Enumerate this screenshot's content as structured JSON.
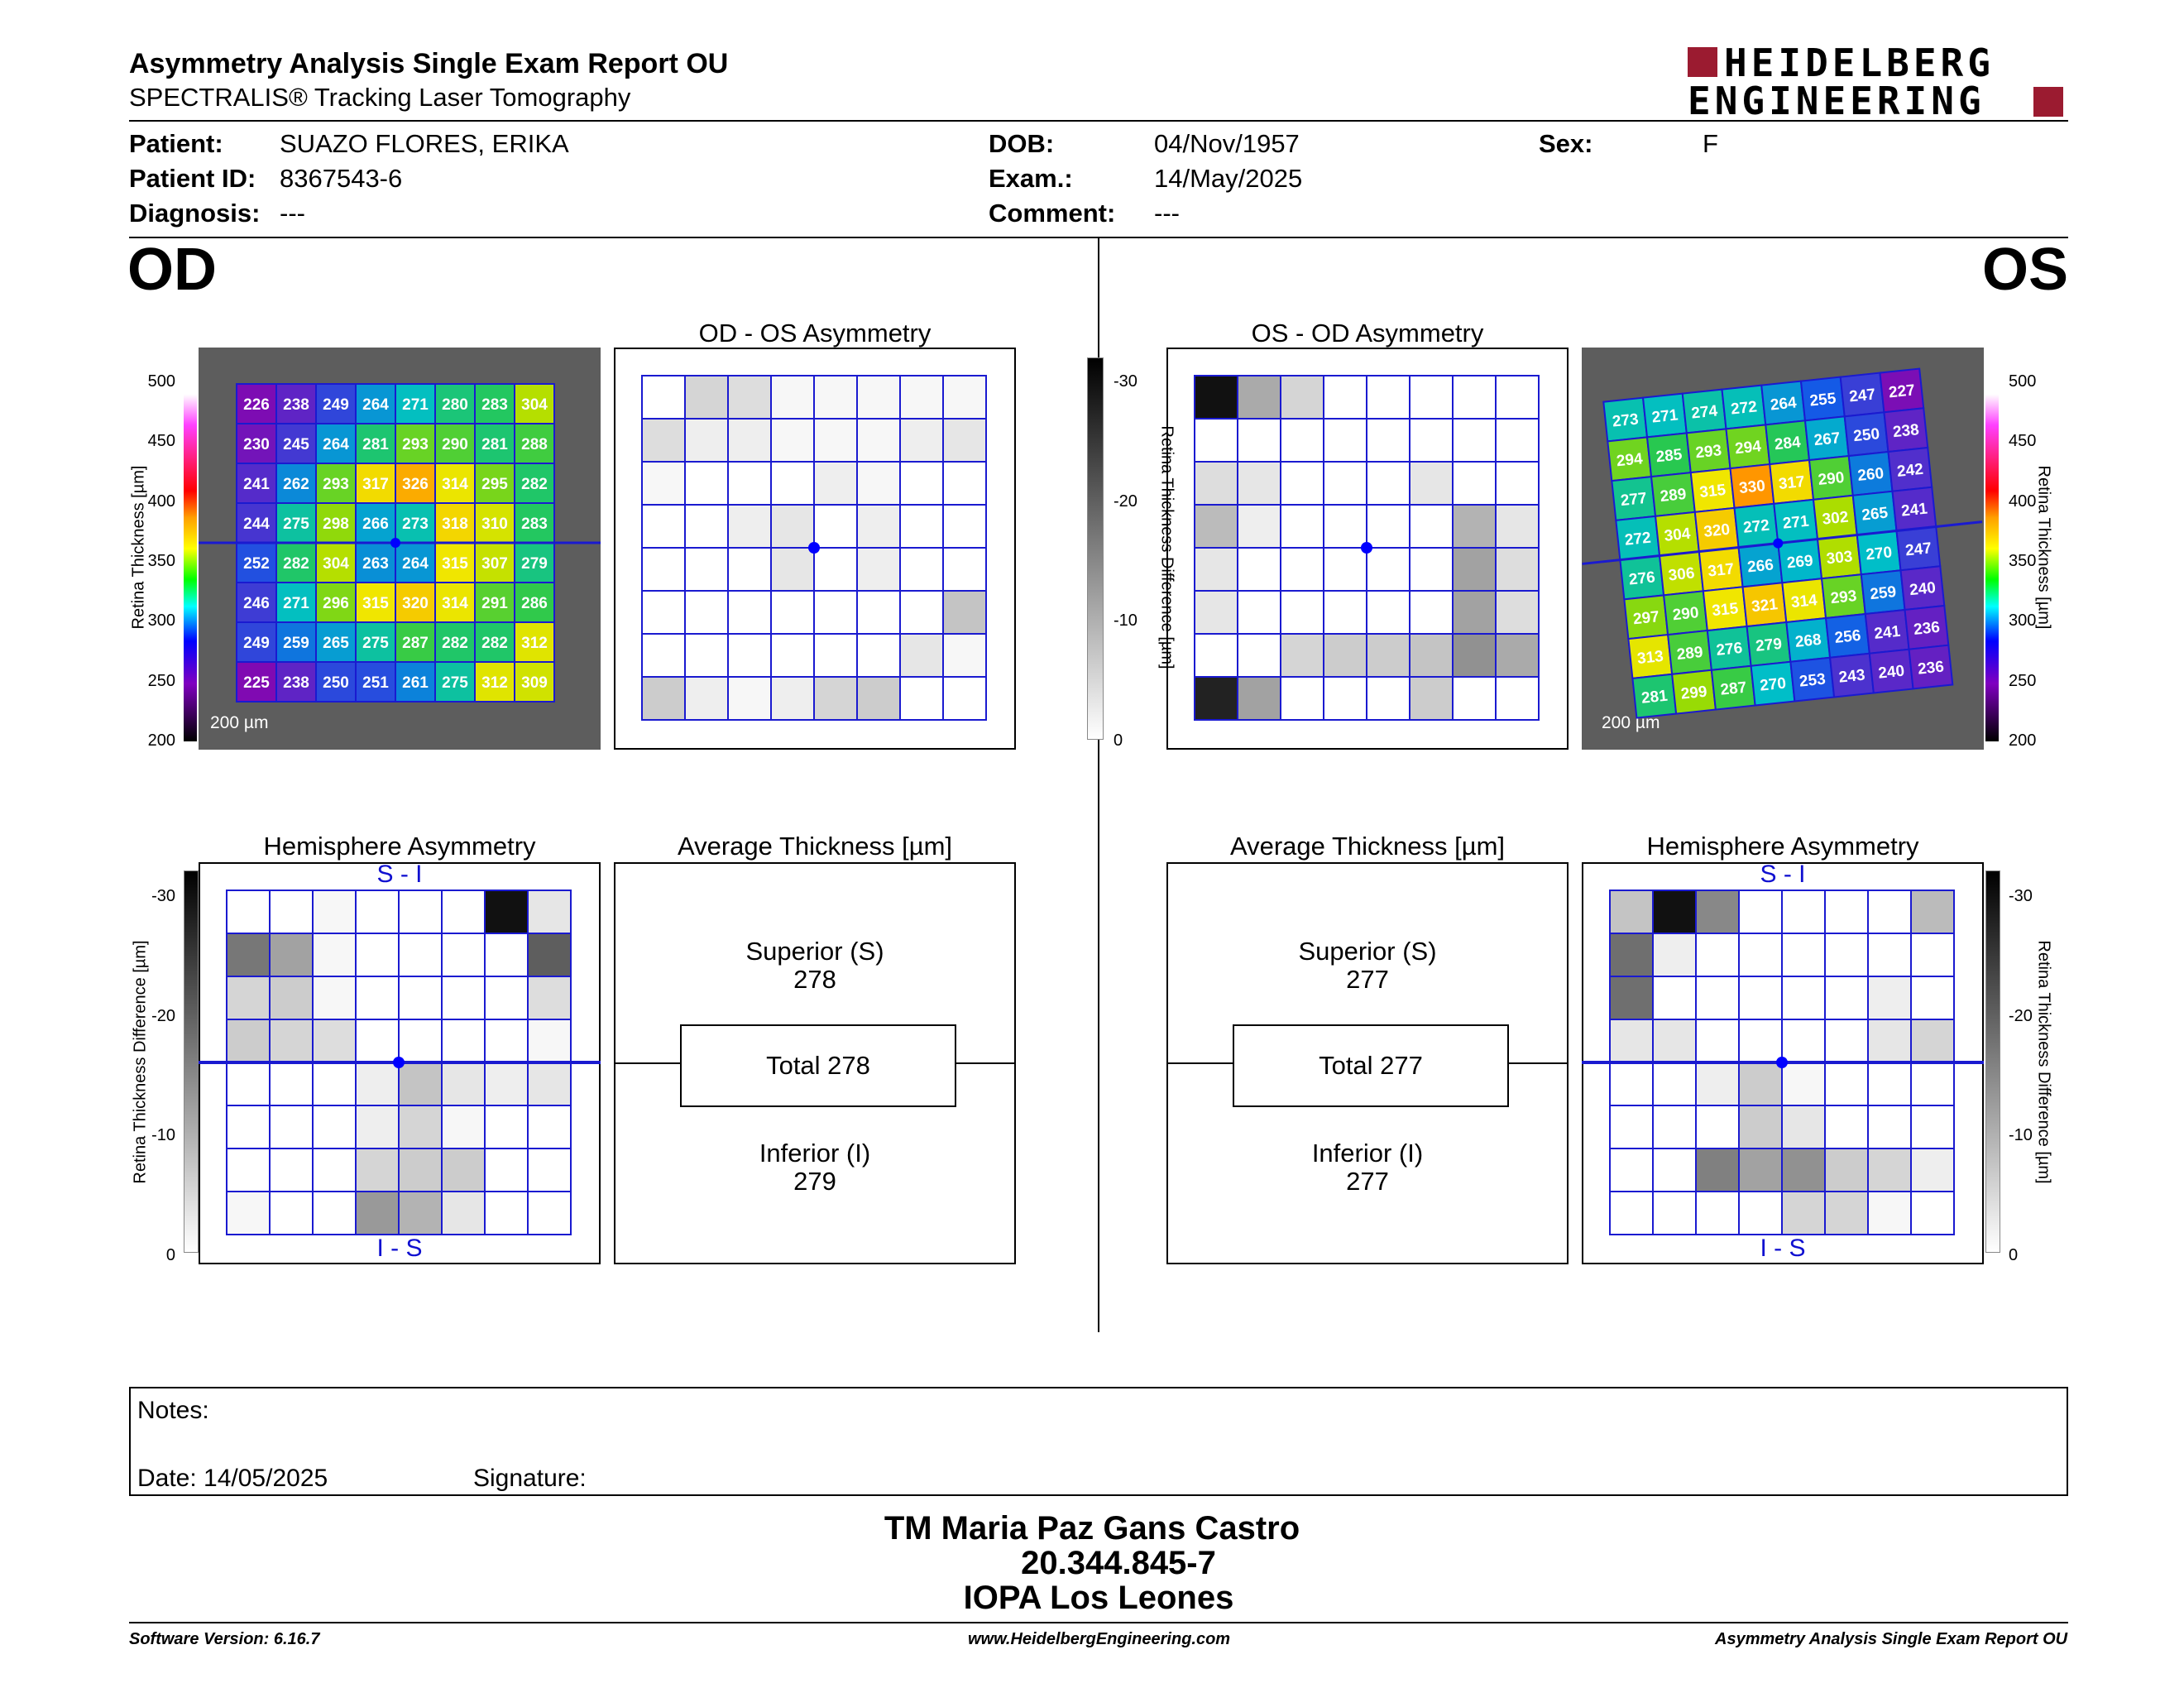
{
  "header": {
    "title": "Asymmetry Analysis Single Exam Report OU",
    "subtitle": "SPECTRALIS® Tracking Laser Tomography",
    "logo_line1": "HEIDELBERG",
    "logo_line2": "ENGINEERING"
  },
  "patient": {
    "patient_label": "Patient:",
    "patient_value": "SUAZO FLORES, ERIKA",
    "id_label": "Patient ID:",
    "id_value": "8367543-6",
    "diagnosis_label": "Diagnosis:",
    "diagnosis_value": "---",
    "dob_label": "DOB:",
    "dob_value": "04/Nov/1957",
    "exam_label": "Exam.:",
    "exam_value": "14/May/2025",
    "comment_label": "Comment:",
    "comment_value": "---",
    "sex_label": "Sex:",
    "sex_value": "F"
  },
  "od": {
    "eye_label": "OD",
    "thickness_grid": [
      [
        226,
        238,
        249,
        264,
        271,
        280,
        283,
        304
      ],
      [
        230,
        245,
        264,
        281,
        293,
        290,
        281,
        288
      ],
      [
        241,
        262,
        293,
        317,
        326,
        314,
        295,
        282
      ],
      [
        244,
        275,
        298,
        266,
        273,
        318,
        310,
        283
      ],
      [
        252,
        282,
        304,
        263,
        264,
        315,
        307,
        279
      ],
      [
        246,
        271,
        296,
        315,
        320,
        314,
        291,
        286
      ],
      [
        249,
        259,
        265,
        275,
        287,
        282,
        282,
        312
      ],
      [
        225,
        238,
        250,
        251,
        261,
        275,
        312,
        309
      ]
    ],
    "scale_label": "200 µm",
    "asym_title": "OD - OS Asymmetry",
    "asym_grid": [
      [
        0,
        5,
        4,
        1,
        1,
        1,
        1,
        1
      ],
      [
        4,
        2,
        2,
        1,
        1,
        1,
        2,
        3
      ],
      [
        1,
        0,
        0,
        0,
        2,
        1,
        0,
        0
      ],
      [
        0,
        0,
        2,
        3,
        0,
        2,
        0,
        0
      ],
      [
        0,
        0,
        0,
        3,
        0,
        2,
        0,
        0
      ],
      [
        0,
        0,
        0,
        0,
        0,
        0,
        0,
        7
      ],
      [
        0,
        0,
        0,
        0,
        0,
        0,
        3,
        1
      ],
      [
        6,
        2,
        1,
        2,
        5,
        6,
        0,
        0
      ]
    ],
    "hemi_title": "Hemisphere Asymmetry",
    "hemi_top": "S - I",
    "hemi_bottom": "I - S",
    "hemi_grid": [
      [
        0,
        0,
        1,
        0,
        0,
        0,
        28,
        3
      ],
      [
        16,
        11,
        1,
        0,
        0,
        0,
        0,
        19
      ],
      [
        5,
        6,
        1,
        0,
        0,
        0,
        0,
        4
      ],
      [
        6,
        5,
        4,
        0,
        0,
        0,
        0,
        1
      ],
      [
        0,
        0,
        0,
        2,
        7,
        3,
        2,
        3
      ],
      [
        0,
        0,
        0,
        2,
        5,
        1,
        0,
        0
      ],
      [
        0,
        0,
        0,
        5,
        6,
        6,
        0,
        0
      ],
      [
        1,
        0,
        0,
        12,
        9,
        3,
        0,
        0
      ]
    ],
    "avg_title": "Average Thickness [µm]",
    "superior_label": "Superior (S)",
    "superior_value": "278",
    "total_label": "Total 278",
    "inferior_label": "Inferior (I)",
    "inferior_value": "279"
  },
  "os": {
    "eye_label": "OS",
    "thickness_grid": [
      [
        273,
        271,
        274,
        272,
        264,
        255,
        247,
        227
      ],
      [
        294,
        285,
        293,
        294,
        284,
        267,
        250,
        238
      ],
      [
        277,
        289,
        315,
        330,
        317,
        290,
        260,
        242
      ],
      [
        272,
        304,
        320,
        272,
        271,
        302,
        265,
        241
      ],
      [
        276,
        306,
        317,
        266,
        269,
        303,
        270,
        247
      ],
      [
        297,
        290,
        315,
        321,
        314,
        293,
        259,
        240
      ],
      [
        313,
        289,
        276,
        279,
        268,
        256,
        241,
        236
      ],
      [
        281,
        299,
        287,
        270,
        253,
        243,
        240,
        236
      ]
    ],
    "scale_label": "200 µm",
    "asym_title": "OS - OD Asymmetry",
    "asym_grid": [
      [
        28,
        10,
        5,
        0,
        0,
        0,
        0,
        0
      ],
      [
        0,
        0,
        0,
        0,
        0,
        0,
        0,
        0
      ],
      [
        4,
        3,
        0,
        0,
        0,
        3,
        0,
        0
      ],
      [
        8,
        2,
        0,
        0,
        0,
        0,
        9,
        3
      ],
      [
        3,
        0,
        0,
        0,
        0,
        0,
        11,
        4
      ],
      [
        3,
        0,
        0,
        0,
        0,
        0,
        11,
        4
      ],
      [
        0,
        0,
        5,
        6,
        6,
        7,
        13,
        10
      ],
      [
        26,
        11,
        0,
        0,
        0,
        6,
        0,
        0
      ]
    ],
    "hemi_title": "Hemisphere Asymmetry",
    "hemi_top": "S - I",
    "hemi_bottom": "I - S",
    "hemi_grid": [
      [
        7,
        28,
        14,
        0,
        0,
        0,
        0,
        8
      ],
      [
        17,
        2,
        0,
        0,
        0,
        0,
        0,
        0
      ],
      [
        17,
        0,
        0,
        0,
        0,
        0,
        2,
        0
      ],
      [
        3,
        3,
        0,
        0,
        0,
        0,
        3,
        5
      ],
      [
        0,
        0,
        2,
        6,
        1,
        0,
        0,
        0
      ],
      [
        0,
        0,
        0,
        6,
        3,
        0,
        0,
        0
      ],
      [
        0,
        0,
        15,
        11,
        13,
        6,
        5,
        2
      ],
      [
        0,
        0,
        0,
        0,
        5,
        5,
        1,
        0
      ]
    ],
    "avg_title": "Average Thickness [µm]",
    "superior_label": "Superior (S)",
    "superior_value": "277",
    "total_label": "Total 277",
    "inferior_label": "Inferior (I)",
    "inferior_value": "277"
  },
  "axes": {
    "thickness_label": "Retina Thickness [µm]",
    "thickness_ticks": [
      "500",
      "450",
      "400",
      "350",
      "300",
      "250",
      "200"
    ],
    "diff_label": "Retina Thickness Difference [µm]",
    "diff_ticks": [
      "-30",
      "-20",
      "-10",
      "0"
    ]
  },
  "colors": {
    "grid_line": "#1a1ad0",
    "fovea_dot": "#0000ff"
  },
  "notes": {
    "notes_label": "Notes:",
    "date_label": "Date: 14/05/2025",
    "signature_label": "Signature:"
  },
  "signature_block": {
    "line1": "TM Maria Paz Gans Castro",
    "line2": "20.344.845-7",
    "line3": "IOPA Los Leones"
  },
  "footer": {
    "software": "Software Version: 6.16.7",
    "website": "www.HeidelbergEngineering.com",
    "report": "Asymmetry Analysis Single Exam Report OU"
  }
}
